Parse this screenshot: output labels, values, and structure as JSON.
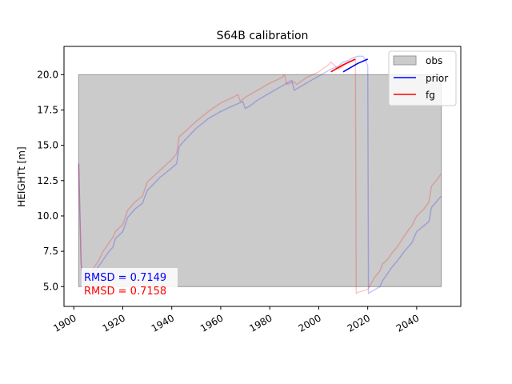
{
  "chart_data": {
    "type": "line",
    "title": "S64B calibration",
    "xlabel": "",
    "ylabel": "HEIGHTt [m]",
    "xlim": [
      1896,
      2058
    ],
    "ylim": [
      3.6,
      22.0
    ],
    "xticks": [
      1900,
      1920,
      1940,
      1960,
      1980,
      2000,
      2020,
      2040
    ],
    "yticks": [
      5.0,
      7.5,
      10.0,
      12.5,
      15.0,
      17.5,
      20.0
    ],
    "ytick_labels": [
      "5.0",
      "7.5",
      "10.0",
      "12.5",
      "15.0",
      "17.5",
      "20.0"
    ],
    "grid": false,
    "legend_position": "top-right",
    "colors": {
      "obs_fill": "#cbcbcb",
      "obs_edge": "#999999",
      "prior": "#0000ff",
      "fg": "#ff0000"
    },
    "obs": {
      "name": "obs",
      "x_range": [
        1902,
        2050
      ],
      "y_range": [
        5.0,
        20.0
      ]
    },
    "series": [
      {
        "name": "prior",
        "role": "ensemble-faded",
        "x": [
          1902,
          1903,
          1904,
          1908,
          1910,
          1912,
          1914,
          1916,
          1917,
          1920,
          1922,
          1925,
          1928,
          1930,
          1935,
          1940,
          1942,
          1943,
          1945,
          1950,
          1955,
          1960,
          1965,
          1969,
          1970,
          1972,
          1975,
          1980,
          1985,
          1988,
          1989,
          1990,
          1991,
          1995,
          2000,
          2005,
          2008,
          2010,
          2012,
          2014,
          2016,
          2018,
          2019,
          2020,
          2020.3,
          2021,
          2025,
          2026,
          2028,
          2030,
          2032,
          2035,
          2037,
          2038,
          2040,
          2045,
          2046,
          2048,
          2050
        ],
        "y": [
          13.7,
          6.6,
          5.3,
          5.9,
          6.4,
          6.9,
          7.4,
          7.8,
          8.4,
          8.9,
          9.9,
          10.5,
          10.9,
          11.8,
          12.7,
          13.4,
          13.7,
          14.9,
          15.3,
          16.2,
          16.9,
          17.4,
          17.8,
          18.1,
          17.6,
          17.8,
          18.2,
          18.7,
          19.2,
          19.5,
          19.6,
          18.9,
          19.0,
          19.4,
          19.9,
          20.4,
          20.6,
          20.9,
          21.0,
          21.2,
          21.3,
          21.3,
          21.1,
          20.6,
          4.5,
          4.6,
          5.0,
          5.4,
          5.9,
          6.4,
          6.8,
          7.5,
          7.9,
          8.1,
          8.9,
          9.6,
          10.6,
          11.0,
          11.4
        ]
      },
      {
        "name": "fg",
        "role": "ensemble-faded",
        "x": [
          1902,
          1903,
          1904,
          1908,
          1910,
          1912,
          1914,
          1916,
          1917,
          1920,
          1922,
          1925,
          1928,
          1930,
          1935,
          1940,
          1942,
          1943,
          1945,
          1950,
          1955,
          1960,
          1965,
          1967,
          1968,
          1970,
          1975,
          1980,
          1985,
          1986,
          1987,
          1990,
          1991,
          1995,
          2000,
          2004,
          2005,
          2008,
          2010,
          2012,
          2014,
          2015,
          2015.3,
          2016,
          2020,
          2021,
          2023,
          2025,
          2026,
          2028,
          2030,
          2032,
          2035,
          2037,
          2038,
          2040,
          2043,
          2045,
          2046,
          2048,
          2050
        ],
        "y": [
          13.7,
          6.6,
          5.3,
          6.3,
          6.8,
          7.5,
          8.0,
          8.5,
          8.9,
          9.4,
          10.4,
          11.0,
          11.4,
          12.4,
          13.2,
          14.0,
          14.4,
          15.6,
          15.9,
          16.7,
          17.4,
          18.0,
          18.4,
          18.6,
          18.1,
          18.4,
          18.9,
          19.4,
          19.8,
          20.0,
          19.3,
          19.5,
          19.3,
          19.8,
          20.2,
          20.7,
          20.9,
          20.4,
          20.6,
          20.9,
          21.0,
          21.1,
          4.5,
          4.6,
          4.8,
          5.1,
          5.7,
          6.1,
          6.6,
          6.9,
          7.4,
          7.8,
          8.6,
          9.1,
          9.3,
          10.0,
          10.5,
          11.0,
          12.1,
          12.5,
          13.0
        ]
      },
      {
        "name": "prior",
        "role": "main",
        "x": [
          2010,
          2016,
          2020
        ],
        "y": [
          20.2,
          20.8,
          21.1
        ]
      },
      {
        "name": "fg",
        "role": "main",
        "x": [
          2005,
          2010,
          2015
        ],
        "y": [
          20.2,
          20.7,
          21.1
        ]
      }
    ],
    "annotations": [
      {
        "text": "RMSD = 0.7149",
        "color": "#0000ff"
      },
      {
        "text": "RMSD = 0.7158",
        "color": "#ff0000"
      }
    ],
    "legend": [
      {
        "label": "obs",
        "kind": "patch"
      },
      {
        "label": "prior",
        "kind": "line"
      },
      {
        "label": "fg",
        "kind": "line"
      }
    ]
  }
}
